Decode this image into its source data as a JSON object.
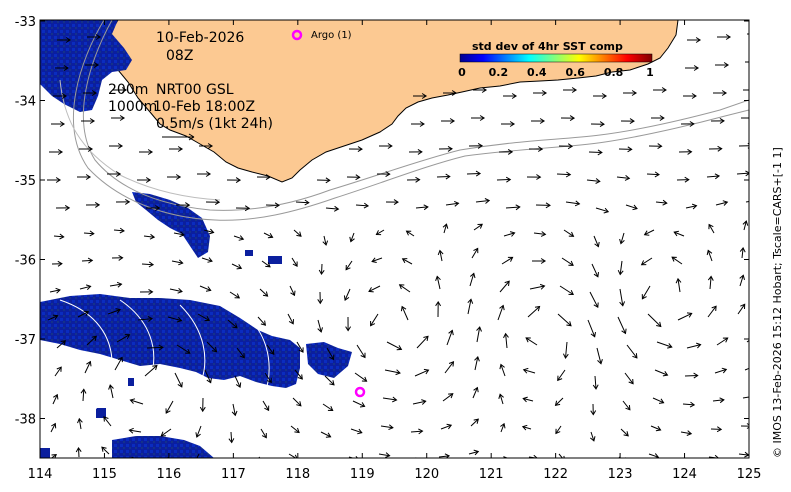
{
  "map": {
    "date": "10-Feb-2026",
    "time": "08Z",
    "contour_label_1": "200m",
    "contour_label_2": "1000m",
    "product": "NRT00 GSL",
    "valid_time": "10-Feb 18:00Z",
    "scale_label": "0.5m/s (1kt 24h)",
    "argo_label": "Argo (1)",
    "credit": "© IMOS 13-Feb-2026 15:12 Hobart; Tscale=CARS+[-1 1]",
    "x_ticks": [
      "114",
      "115",
      "116",
      "117",
      "118",
      "119",
      "120",
      "121",
      "122",
      "123",
      "124",
      "125"
    ],
    "y_ticks": [
      "-33",
      "-34",
      "-35",
      "-36",
      "-37",
      "-38"
    ],
    "colorbar": {
      "title": "std dev of 4hr SST comp",
      "ticks": [
        "0",
        "0.2",
        "0.4",
        "0.6",
        "0.8",
        "1"
      ]
    },
    "colors": {
      "land": "#fcc992",
      "sst_low": "#0a1c96",
      "argo": "#ff00ff"
    }
  }
}
